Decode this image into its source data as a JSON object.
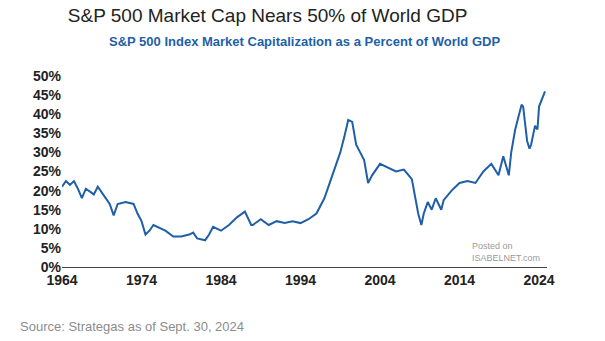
{
  "chart_data": {
    "type": "line",
    "title": "S&P 500 Market Cap Nears 50% of World GDP",
    "subtitle": "S&P 500 Index Market Capitalization as a Percent of World GDP",
    "source": "Source: Strategas as of Sept. 30, 2024",
    "watermark": "Posted on\nISABELNET.com",
    "color": "#1f5fa8",
    "grid": false,
    "x": [
      1964,
      1964.5,
      1965,
      1965.5,
      1966,
      1966.5,
      1967,
      1968,
      1968.5,
      1969,
      1970,
      1970.5,
      1971,
      1972,
      1973,
      1973.5,
      1974,
      1974.5,
      1975,
      1975.5,
      1976,
      1977,
      1978,
      1979,
      1980,
      1980.5,
      1981,
      1982,
      1982.5,
      1983,
      1984,
      1985,
      1986,
      1987,
      1987.8,
      1988,
      1989,
      1990,
      1991,
      1992,
      1993,
      1994,
      1995,
      1996,
      1997,
      1998,
      1999,
      1999.5,
      2000,
      2000.5,
      2001,
      2001.5,
      2002,
      2002.5,
      2003,
      2004,
      2005,
      2006,
      2007,
      2008,
      2008.8,
      2009.2,
      2009.5,
      2010,
      2010.5,
      2011,
      2011.7,
      2012,
      2013,
      2014,
      2015,
      2016,
      2017,
      2018,
      2018.9,
      2019.5,
      2020.2,
      2020.5,
      2021,
      2021.8,
      2022,
      2022.5,
      2022.8,
      2023,
      2023.5,
      2023.8,
      2024,
      2024.75
    ],
    "values": [
      21,
      22.5,
      21.5,
      22.5,
      20.5,
      18,
      20.5,
      19,
      21,
      19.5,
      16.5,
      13.5,
      16.5,
      17,
      16.5,
      14,
      12,
      8.5,
      9.5,
      11,
      10.5,
      9.5,
      8,
      8,
      8.5,
      9,
      7.5,
      7,
      8.5,
      10.5,
      9.5,
      11,
      13,
      14.5,
      11,
      11,
      12.5,
      11,
      12,
      11.5,
      12,
      11.5,
      12.5,
      14,
      18,
      24,
      30,
      34,
      38.5,
      38,
      32,
      30,
      28,
      22,
      24,
      27,
      26,
      25,
      25.5,
      23,
      14,
      11,
      14,
      17,
      15,
      18,
      15,
      17.5,
      20,
      22,
      22.5,
      22,
      25,
      27,
      24,
      29,
      24,
      30,
      36,
      42.5,
      42,
      33,
      31,
      32,
      37,
      36,
      42,
      46
    ],
    "xlim": [
      1964,
      2025
    ],
    "xticks": [
      1964,
      1974,
      1984,
      1994,
      2004,
      2014,
      2024
    ],
    "ylim": [
      0,
      50
    ],
    "yticks": [
      {
        "value": 0,
        "label": "0%"
      },
      {
        "value": 5,
        "label": "5%"
      },
      {
        "value": 10,
        "label": "10%"
      },
      {
        "value": 15,
        "label": "15%"
      },
      {
        "value": 20,
        "label": "20%"
      },
      {
        "value": 25,
        "label": "25%"
      },
      {
        "value": 30,
        "label": "30%"
      },
      {
        "value": 35,
        "label": "35%"
      },
      {
        "value": 40,
        "label": "40%"
      },
      {
        "value": 45,
        "label": "45%"
      },
      {
        "value": 50,
        "label": "50%"
      }
    ]
  }
}
